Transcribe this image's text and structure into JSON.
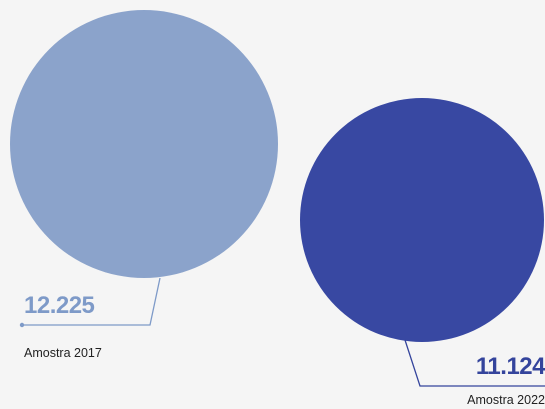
{
  "chart_data": {
    "type": "bubble",
    "title": "",
    "series": [
      {
        "name": "Amostra 2017",
        "value": 12225,
        "value_label": "12.225",
        "sample_label": "Amostra 2017",
        "color": "#8ba3cb",
        "label_color": "#7e9ac8",
        "line_color": "#7e9ac8"
      },
      {
        "name": "Amostra 2022",
        "value": 11124,
        "value_label": "11.124",
        "sample_label": "Amostra 2022",
        "color": "#3848a2",
        "label_color": "#34449c",
        "line_color": "#34449c"
      }
    ]
  }
}
